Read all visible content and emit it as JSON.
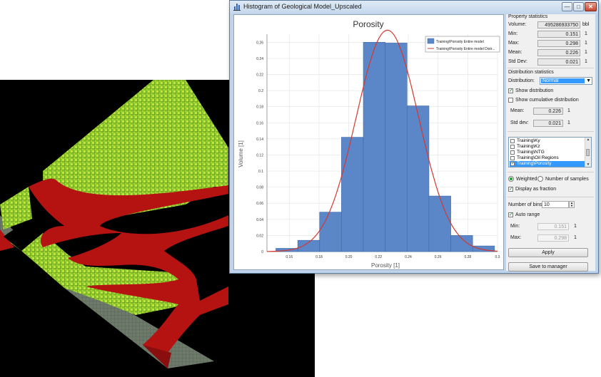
{
  "window": {
    "title": "Histogram of Geological Model_Upscaled",
    "minimize_glyph": "—",
    "maximize_glyph": "□",
    "close_glyph": "✕"
  },
  "property_statistics": {
    "heading": "Property statistics",
    "volume_label": "Volume:",
    "volume_value": "495286933750",
    "volume_unit": "bbl",
    "min_label": "Min:",
    "min_value": "0.151",
    "min_unit": "1",
    "max_label": "Max:",
    "max_value": "0.298",
    "max_unit": "1",
    "mean_label": "Mean:",
    "mean_value": "0.226",
    "mean_unit": "1",
    "std_label": "Std Dev:",
    "std_value": "0.021",
    "std_unit": "1"
  },
  "distribution_statistics": {
    "heading": "Distribution statistics",
    "distribution_label": "Distribution:",
    "distribution_value": "Normal",
    "show_distribution_label": "Show distribution",
    "show_distribution_checked": true,
    "show_cumulative_label": "Show cumulative distribution",
    "show_cumulative_checked": false,
    "mean_label": "Mean:",
    "mean_value": "0.226",
    "mean_unit": "1",
    "std_label": "Std dev:",
    "std_value": "0.021",
    "std_unit": "1"
  },
  "property_list": {
    "items": [
      {
        "label": "Training\\Ky",
        "checked": false,
        "selected": false
      },
      {
        "label": "Training\\Kz",
        "checked": false,
        "selected": false
      },
      {
        "label": "Training\\NTG",
        "checked": false,
        "selected": false
      },
      {
        "label": "Training\\Oil Regions",
        "checked": false,
        "selected": false
      },
      {
        "label": "Training\\Porosity",
        "checked": true,
        "selected": true
      }
    ]
  },
  "weighting": {
    "weighted_label": "Weighted",
    "samples_label": "Number of samples",
    "display_fraction_label": "Display as fraction",
    "display_fraction_checked": true
  },
  "bins": {
    "number_label": "Number of bins:",
    "number_value": "10",
    "auto_range_label": "Auto range",
    "auto_range_checked": true,
    "min_label": "Min:",
    "min_value": "0.151",
    "min_unit": "1",
    "max_label": "Max:",
    "max_value": "0.298",
    "max_unit": "1"
  },
  "buttons": {
    "apply_label": "Apply",
    "save_label": "Save to manager"
  },
  "colors": {
    "bar_fill": "#5b86c8",
    "bar_stroke": "#3f6aa8",
    "curve": "#d43a2f",
    "model_green": "#8ccf2c",
    "model_red": "#b51212"
  },
  "chart_data": {
    "type": "bar",
    "title": "Porosity",
    "xlabel": "Porosity [1]",
    "ylabel": "Volume [1]",
    "xlim": [
      0.145,
      0.3
    ],
    "ylim": [
      0,
      0.27
    ],
    "x_ticks": [
      0.16,
      0.18,
      0.2,
      0.22,
      0.24,
      0.26,
      0.28,
      0.3
    ],
    "x_tick_labels": [
      "0.16",
      "0.18",
      "0.20",
      "0.22",
      "0.24",
      "0.26",
      "0.28",
      "0.3"
    ],
    "y_ticks": [
      0,
      0.02,
      0.04,
      0.06,
      0.08,
      0.1,
      0.12,
      0.14,
      0.16,
      0.18,
      0.2,
      0.22,
      0.24,
      0.26
    ],
    "y_tick_labels": [
      "0",
      "0.02",
      "0.04",
      "0.06",
      "0.08",
      "0.1",
      "0.12",
      "0.14",
      "0.16",
      "0.18",
      "0.2",
      "0.22",
      "0.24",
      "0.26"
    ],
    "bin_edges": [
      0.151,
      0.1657,
      0.1804,
      0.1951,
      0.2098,
      0.2245,
      0.2392,
      0.2539,
      0.2686,
      0.2833,
      0.298
    ],
    "values": [
      0.004,
      0.014,
      0.049,
      0.142,
      0.26,
      0.259,
      0.181,
      0.069,
      0.02,
      0.007
    ],
    "distribution": {
      "type": "normal",
      "mean": 0.226,
      "std": 0.021,
      "peak": 0.275
    },
    "legend": [
      "Training\\Porosity  Entire model",
      "Training\\Porosity  Entire model Distr..."
    ],
    "legend_position": "top-right",
    "grid": true
  }
}
